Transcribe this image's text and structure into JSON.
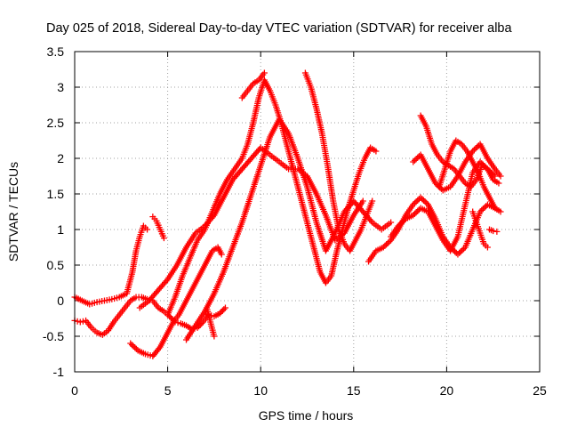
{
  "chart_data": {
    "type": "scatter",
    "title": "Day 025 of 2018, Sidereal Day-to-day VTEC variation (SDTVAR) for receiver alba",
    "xlabel": "GPS time / hours",
    "ylabel": "SDTVAR / TECUs",
    "xlim": [
      0,
      25
    ],
    "ylim": [
      -1,
      3.5
    ],
    "x_ticks": [
      0,
      5,
      10,
      15,
      20,
      25
    ],
    "x_tick_labels": [
      "0",
      "5",
      "10",
      "15",
      "20",
      "25"
    ],
    "y_ticks": [
      -1,
      -0.5,
      0,
      0.5,
      1,
      1.5,
      2,
      2.5,
      3,
      3.5
    ],
    "y_tick_labels": [
      "-1",
      "-0.5",
      "0",
      "0.5",
      "1",
      "1.5",
      "2",
      "2.5",
      "3",
      "3.5"
    ],
    "grid": true,
    "legend": "none",
    "marker": "+",
    "color": "#ff0000",
    "series": [
      {
        "x": [
          0.0,
          0.3,
          0.6,
          0.9,
          1.2,
          1.5,
          1.8,
          2.1,
          2.4,
          2.7,
          3.0,
          3.3,
          3.6,
          3.9,
          4.2,
          4.5,
          4.8,
          5.1,
          5.4,
          5.7,
          6.0,
          6.3,
          6.6,
          6.9,
          7.2,
          7.5,
          7.8,
          8.1
        ],
        "y": [
          -0.28,
          -0.3,
          -0.28,
          -0.38,
          -0.45,
          -0.48,
          -0.42,
          -0.3,
          -0.2,
          -0.1,
          0.0,
          0.05,
          0.05,
          0.02,
          0.0,
          -0.1,
          -0.15,
          -0.22,
          -0.3,
          -0.32,
          -0.35,
          -0.4,
          -0.38,
          -0.3,
          -0.2,
          -0.22,
          -0.18,
          -0.1
        ]
      },
      {
        "x": [
          0.0,
          0.4,
          0.8,
          1.2,
          1.6,
          2.0,
          2.4,
          2.8,
          3.1,
          3.3,
          3.5,
          3.7,
          3.9
        ],
        "y": [
          0.05,
          0.0,
          -0.05,
          -0.02,
          0.0,
          0.02,
          0.05,
          0.1,
          0.4,
          0.7,
          0.9,
          1.05,
          1.0
        ]
      },
      {
        "x": [
          4.2,
          4.4,
          4.6,
          4.8
        ],
        "y": [
          1.18,
          1.12,
          1.0,
          0.88
        ]
      },
      {
        "x": [
          3.0,
          3.4,
          3.8,
          4.2,
          4.6,
          5.0,
          5.3,
          5.6,
          5.9,
          6.2,
          6.5,
          6.8,
          7.1,
          7.4,
          7.7,
          7.9
        ],
        "y": [
          -0.6,
          -0.7,
          -0.75,
          -0.78,
          -0.65,
          -0.45,
          -0.3,
          -0.2,
          -0.05,
          0.1,
          0.25,
          0.4,
          0.55,
          0.7,
          0.75,
          0.65
        ]
      },
      {
        "x": [
          3.5,
          4.0,
          4.5,
          5.0,
          5.5,
          6.0,
          6.5,
          7.0,
          7.5,
          8.0,
          8.5,
          9.0,
          9.5,
          10.0,
          10.5,
          11.0,
          11.5,
          12.0,
          12.5,
          13.0,
          13.5,
          14.0,
          14.5,
          15.0,
          15.5
        ],
        "y": [
          -0.1,
          0.0,
          0.15,
          0.3,
          0.5,
          0.75,
          0.95,
          1.05,
          1.2,
          1.45,
          1.7,
          1.85,
          2.0,
          2.15,
          2.05,
          1.95,
          1.85,
          1.85,
          1.75,
          1.5,
          1.2,
          0.85,
          0.95,
          1.2,
          1.4
        ]
      },
      {
        "x": [
          5.0,
          5.4,
          5.8,
          6.2,
          6.6,
          7.0,
          7.4,
          7.8,
          8.2,
          8.6,
          9.0,
          9.3,
          9.6,
          9.9,
          10.2,
          10.5,
          10.8,
          11.1,
          11.4,
          11.7,
          12.0,
          12.3,
          12.6,
          12.9,
          13.2,
          13.5,
          13.8,
          14.1,
          14.4,
          14.7,
          15.0,
          15.3,
          15.6,
          15.9,
          16.2
        ],
        "y": [
          -0.2,
          0.05,
          0.35,
          0.6,
          0.85,
          1.0,
          1.25,
          1.5,
          1.7,
          1.85,
          2.0,
          2.2,
          2.5,
          2.85,
          3.1,
          2.95,
          2.75,
          2.5,
          2.2,
          1.9,
          1.6,
          1.3,
          1.0,
          0.7,
          0.4,
          0.25,
          0.35,
          0.7,
          1.0,
          1.3,
          1.55,
          1.8,
          2.0,
          2.15,
          2.1
        ]
      },
      {
        "x": [
          6.0,
          6.5,
          7.0,
          7.5,
          8.0,
          8.5,
          9.0,
          9.5,
          10.0,
          10.5,
          11.0,
          11.5,
          12.0,
          12.5,
          13.0,
          13.5,
          14.0,
          14.5,
          15.0,
          15.5,
          16.0,
          16.5,
          17.0
        ],
        "y": [
          -0.55,
          -0.35,
          -0.15,
          0.1,
          0.4,
          0.75,
          1.1,
          1.5,
          1.9,
          2.3,
          2.55,
          2.35,
          2.0,
          1.6,
          1.1,
          0.7,
          0.95,
          1.25,
          1.4,
          1.25,
          1.1,
          1.0,
          1.1
        ]
      },
      {
        "x": [
          7.1,
          7.3,
          7.5
        ],
        "y": [
          -0.1,
          -0.3,
          -0.5
        ]
      },
      {
        "x": [
          9.0,
          9.3,
          9.6,
          9.9,
          10.2
        ],
        "y": [
          2.85,
          2.95,
          3.05,
          3.1,
          3.2
        ]
      },
      {
        "x": [
          12.4,
          12.7,
          13.0,
          13.3,
          13.6,
          13.9,
          14.2,
          14.5,
          14.8,
          15.1,
          15.4,
          15.7,
          16.0
        ],
        "y": [
          3.2,
          3.0,
          2.7,
          2.35,
          1.9,
          1.4,
          1.0,
          0.8,
          0.7,
          0.85,
          1.0,
          1.2,
          1.4
        ]
      },
      {
        "x": [
          15.8,
          16.2,
          16.6,
          17.0,
          17.4,
          17.8,
          18.2,
          18.6,
          19.0,
          19.4,
          19.8,
          20.2,
          20.6,
          21.0,
          21.4,
          21.8,
          22.2,
          22.6
        ],
        "y": [
          0.55,
          0.7,
          0.75,
          0.85,
          1.0,
          1.2,
          1.35,
          1.45,
          1.35,
          1.15,
          0.9,
          0.75,
          0.65,
          0.75,
          1.0,
          1.25,
          1.35,
          1.3
        ]
      },
      {
        "x": [
          17.0,
          17.4,
          17.8,
          18.2,
          18.6,
          19.0,
          19.4,
          19.8,
          20.2,
          20.6,
          21.0,
          21.4,
          21.8,
          22.2,
          22.6
        ],
        "y": [
          0.9,
          1.05,
          1.15,
          1.2,
          1.3,
          1.25,
          1.05,
          0.85,
          0.7,
          0.9,
          1.35,
          1.8,
          1.95,
          1.85,
          1.75
        ]
      },
      {
        "x": [
          18.6,
          18.9,
          19.2,
          19.5,
          19.8,
          20.1,
          20.4,
          20.7,
          21.0,
          21.3,
          21.6,
          21.9,
          22.2,
          22.5,
          22.8
        ],
        "y": [
          2.6,
          2.45,
          2.2,
          2.05,
          1.95,
          1.9,
          1.85,
          1.75,
          1.65,
          1.6,
          1.7,
          1.9,
          1.85,
          1.7,
          1.65
        ]
      },
      {
        "x": [
          18.2,
          18.6,
          19.0,
          19.4,
          19.8,
          20.2,
          20.6,
          21.0,
          21.4,
          21.8,
          22.2,
          22.6,
          22.9
        ],
        "y": [
          1.95,
          2.05,
          1.85,
          1.65,
          1.55,
          1.6,
          1.75,
          1.95,
          2.1,
          2.2,
          2.0,
          1.85,
          1.75
        ]
      },
      {
        "x": [
          19.6,
          19.9,
          20.2,
          20.5,
          20.8,
          21.1,
          21.4,
          21.7,
          22.0,
          22.3,
          22.6,
          22.9
        ],
        "y": [
          1.6,
          1.85,
          2.1,
          2.25,
          2.2,
          2.1,
          1.95,
          1.8,
          1.6,
          1.45,
          1.3,
          1.25
        ]
      },
      {
        "x": [
          21.4,
          21.6,
          21.8,
          22.0,
          22.2
        ],
        "y": [
          1.25,
          1.1,
          0.95,
          0.8,
          0.75
        ]
      },
      {
        "x": [
          22.3,
          22.5,
          22.7
        ],
        "y": [
          1.0,
          0.98,
          0.97
        ]
      }
    ]
  }
}
